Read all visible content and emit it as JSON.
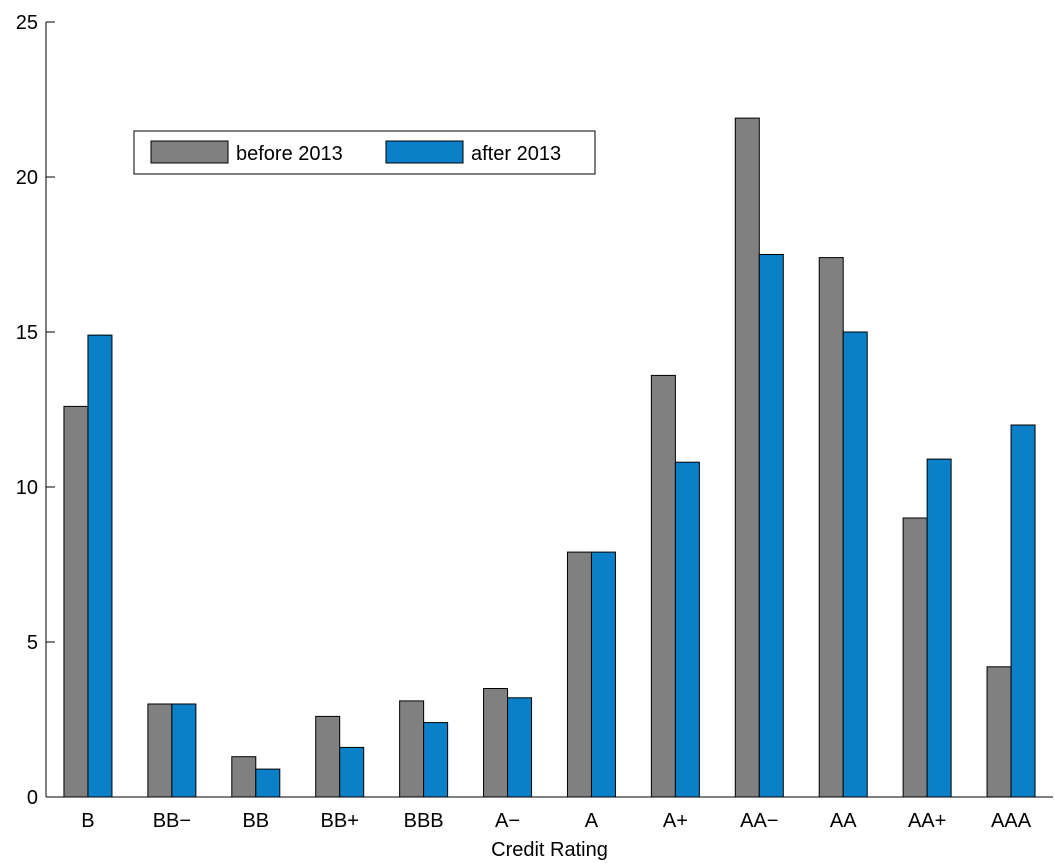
{
  "chart_data": {
    "type": "bar",
    "title": "",
    "xlabel": "Credit Rating",
    "ylabel": "",
    "ylim": [
      0,
      25
    ],
    "yticks": [
      0,
      5,
      10,
      15,
      20,
      25
    ],
    "grid": false,
    "legend_position": "top-left",
    "categories": [
      "B",
      "BB−",
      "BB",
      "BB+",
      "BBB",
      "A−",
      "A",
      "A+",
      "AA−",
      "AA",
      "AA+",
      "AAA"
    ],
    "series": [
      {
        "name": "before 2013",
        "color": "#808080",
        "values": [
          12.6,
          3.0,
          1.3,
          2.6,
          3.1,
          3.5,
          7.9,
          13.6,
          21.9,
          17.4,
          9.0,
          4.2
        ]
      },
      {
        "name": "after 2013",
        "color": "#0a80c8",
        "values": [
          14.9,
          3.0,
          0.9,
          1.6,
          2.4,
          3.2,
          7.9,
          10.8,
          17.5,
          15.0,
          10.9,
          12.0
        ]
      }
    ]
  }
}
